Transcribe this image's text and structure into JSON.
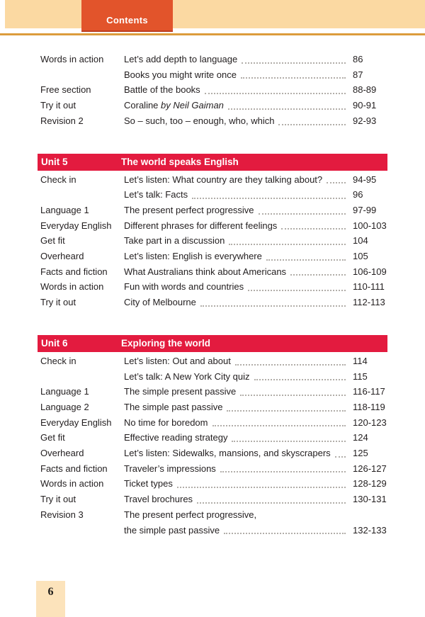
{
  "header": {
    "tab_label": "Contents"
  },
  "footer": {
    "page_number": "6"
  },
  "colors": {
    "band": "#fbd9a2",
    "tab_orange": "#e2542b",
    "rule_orange": "#dc9c3c",
    "banner_red": "#e31b3f",
    "footer_box": "#fce3bb",
    "text": "#221e1f",
    "leader_dots": "#b2aea9"
  },
  "sections": [
    {
      "banner": null,
      "rows": [
        {
          "label": "Words in action",
          "title": "Let’s add depth to language",
          "pages": "86"
        },
        {
          "label": "",
          "title": "Books you might write once",
          "pages": "87"
        },
        {
          "label": "Free section",
          "title": "Battle of the books",
          "pages": "88-89"
        },
        {
          "label": "Try it out",
          "title": "Coraline",
          "title_italic": "by Neil Gaiman",
          "pages": "90-91"
        },
        {
          "label": "Revision 2",
          "title": "So – such, too – enough, who, which",
          "pages": "92-93"
        }
      ]
    },
    {
      "banner": {
        "unit": "Unit 5",
        "title": "The world speaks English"
      },
      "rows": [
        {
          "label": "Check in",
          "title": "Let’s listen: What country are they talking about?",
          "pages": "94-95"
        },
        {
          "label": "",
          "title": "Let’s talk: Facts",
          "pages": "96"
        },
        {
          "label": "Language 1",
          "title": "The present perfect progressive",
          "pages": "97-99"
        },
        {
          "label": "Everyday English",
          "title": "Different phrases for different feelings",
          "pages": "100-103"
        },
        {
          "label": "Get fit",
          "title": "Take part in a discussion",
          "pages": "104"
        },
        {
          "label": "Overheard",
          "title": "Let’s listen: English is everywhere",
          "pages": "105"
        },
        {
          "label": "Facts and fiction",
          "title": "What Australians think about Americans",
          "pages": "106-109"
        },
        {
          "label": "Words in action",
          "title": "Fun with words and countries",
          "pages": "110-111"
        },
        {
          "label": "Try it out",
          "title": "City of Melbourne",
          "pages": "112-113"
        }
      ]
    },
    {
      "banner": {
        "unit": "Unit 6",
        "title": "Exploring the world"
      },
      "rows": [
        {
          "label": "Check in",
          "title": "Let’s listen: Out and about",
          "pages": "114"
        },
        {
          "label": "",
          "title": "Let’s talk: A New York City quiz",
          "pages": "115"
        },
        {
          "label": "Language 1",
          "title": "The simple present passive",
          "pages": "116-117"
        },
        {
          "label": "Language 2",
          "title": "The simple past passive",
          "pages": "118-119"
        },
        {
          "label": "Everyday English",
          "title": "No time for boredom",
          "pages": "120-123"
        },
        {
          "label": "Get fit",
          "title": "Effective reading strategy",
          "pages": "124"
        },
        {
          "label": "Overheard",
          "title": "Let’s listen: Sidewalks, mansions, and skyscrapers",
          "pages": "125"
        },
        {
          "label": "Facts and fiction",
          "title": "Traveler’s impressions",
          "pages": "126-127"
        },
        {
          "label": "Words in action",
          "title": "Ticket types",
          "pages": "128-129"
        },
        {
          "label": "Try it out",
          "title": "Travel brochures",
          "pages": "130-131"
        },
        {
          "label": "Revision 3",
          "title_lines": [
            "The present perfect progressive,",
            "the simple past passive"
          ],
          "pages": "132-133"
        }
      ]
    }
  ]
}
